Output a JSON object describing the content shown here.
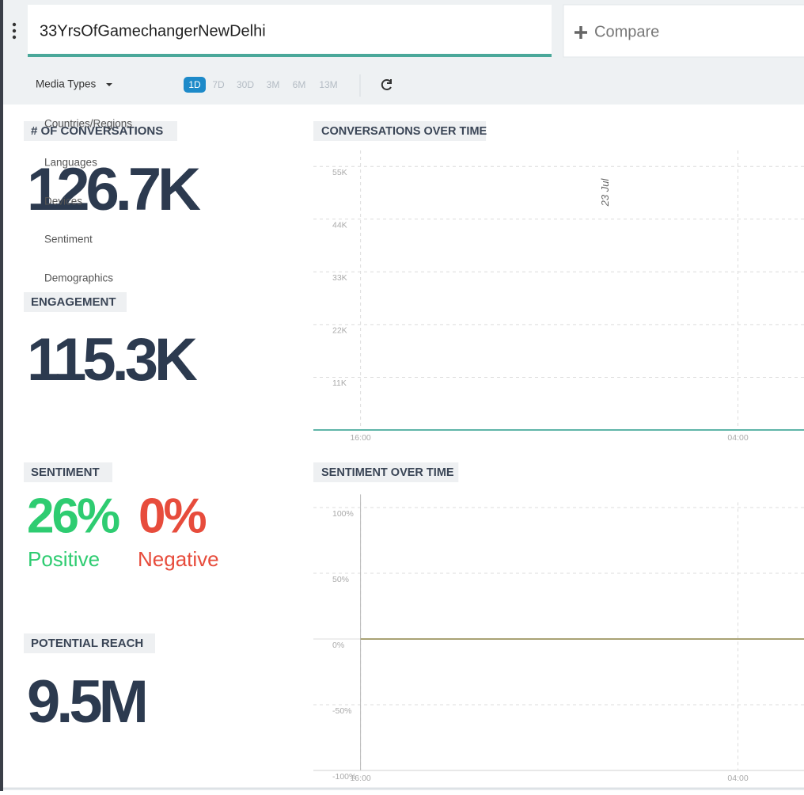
{
  "header": {
    "search": "33YrsOfGamechangerNewDelhi",
    "compare": "Compare"
  },
  "toolbar": {
    "media_types": "Media Types",
    "ranges": [
      "1D",
      "7D",
      "30D",
      "3M",
      "6M",
      "13M"
    ],
    "active_range": 0
  },
  "menu": [
    "Countries/Regions",
    "Languages",
    "Devices",
    "Sentiment",
    "Demographics"
  ],
  "metrics": {
    "conversations": {
      "label": "# OF CONVERSATIONS",
      "value": "126.7K"
    },
    "engagement": {
      "label": "ENGAGEMENT",
      "value": "115.3K"
    },
    "sentiment": {
      "label": "SENTIMENT",
      "positive": "26%",
      "positive_label": "Positive",
      "negative": "0%",
      "negative_label": "Negative"
    },
    "reach": {
      "label": "POTENTIAL REACH",
      "value": "9.5M"
    }
  },
  "chart_data": [
    {
      "type": "line",
      "title": "CONVERSATIONS OVER TIME",
      "x": [
        14.5,
        22,
        30.1
      ],
      "series": [
        {
          "color": "#5fb5a8",
          "values": [
            0,
            0,
            0
          ]
        }
      ],
      "xlim": [
        14.5,
        30.1
      ],
      "xticks": [
        {
          "value": 16,
          "label": "16:00"
        },
        {
          "value": 28,
          "label": "04:00"
        }
      ],
      "ylim": [
        0,
        60000
      ],
      "yticks": [
        {
          "value": 11000,
          "label": "11K"
        },
        {
          "value": 22000,
          "label": "22K"
        },
        {
          "value": 33000,
          "label": "33K"
        },
        {
          "value": 44000,
          "label": "44K"
        },
        {
          "value": 55000,
          "label": "55K"
        }
      ],
      "annotations": [
        {
          "text": "23 Jul",
          "x": 24
        }
      ],
      "grid": true
    },
    {
      "type": "line",
      "title": "SENTIMENT OVER TIME",
      "x": [
        16,
        23,
        30.1
      ],
      "series": [
        {
          "color": "#a9a274",
          "values": [
            0,
            0,
            0
          ]
        }
      ],
      "xlim": [
        14.5,
        30.1
      ],
      "xticks": [
        {
          "value": 16,
          "label": "16:00"
        },
        {
          "value": 28,
          "label": "04:00"
        }
      ],
      "ylim": [
        -100,
        110
      ],
      "yticks": [
        {
          "value": 100,
          "label": "100%"
        },
        {
          "value": 50,
          "label": "50%"
        },
        {
          "value": 0,
          "label": "0%"
        },
        {
          "value": -50,
          "label": "-50%"
        },
        {
          "value": -100,
          "label": "-100%"
        }
      ],
      "annotations": [],
      "grid": true
    }
  ]
}
